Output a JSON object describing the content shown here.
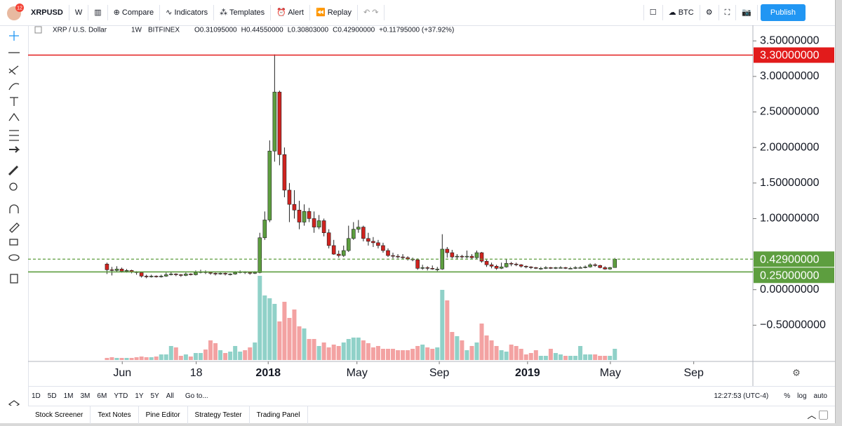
{
  "toolbar": {
    "symbol": "XRPUSD",
    "interval": "W",
    "badge": "12",
    "items": [
      "Compare",
      "Indicators",
      "Templates",
      "Alert",
      "Replay"
    ],
    "currency": "BTC",
    "publish": "Publish"
  },
  "legend": {
    "name": "XRP / U.S. Dollar",
    "interval": "1W",
    "exchange": "BITFINEX",
    "values": [
      "O0.31095000",
      "H0.44550000",
      "L0.30803000",
      "C0.42900000",
      "+0.11795000 (+37.92%)"
    ]
  },
  "chart_data": {
    "type": "candlestick",
    "xlim": [
      -16,
      131
    ],
    "xticks": [
      {
        "value": 3.1,
        "label": "Jun"
      },
      {
        "value": 18.1,
        "label": "18"
      },
      {
        "value": 32.7,
        "label": "2018"
      },
      {
        "value": 50.7,
        "label": "May"
      },
      {
        "value": 67.4,
        "label": "Sep"
      },
      {
        "value": 85.3,
        "label": "2019"
      },
      {
        "value": 102.1,
        "label": "May"
      },
      {
        "value": 119,
        "label": "Sep"
      }
    ],
    "ylim": [
      -1.01,
      3.7
    ],
    "yticks": [
      {
        "value": 3.5,
        "label": "3.50000000"
      },
      {
        "value": 3,
        "label": "3.00000000"
      },
      {
        "value": 2.5,
        "label": "2.50000000"
      },
      {
        "value": 2,
        "label": "2.00000000"
      },
      {
        "value": 1.5,
        "label": "1.50000000"
      },
      {
        "value": 1,
        "label": "1.00000000"
      },
      {
        "value": 0,
        "label": "0.00000000"
      },
      {
        "value": -0.5,
        "label": "−0.50000000"
      }
    ],
    "up_color": "#5d9e3f",
    "down_color": "#d0231f",
    "volume_up_color": "#90d1c8",
    "volume_down_color": "#f3a2a2",
    "hlines": [
      {
        "value": 3.3,
        "label": "3.30000000",
        "color": "#e21b1b",
        "style": "solid"
      },
      {
        "value": 0.25,
        "label": "0.25000000",
        "color": "#5d9e3f",
        "style": "solid"
      },
      {
        "value": 0.429,
        "label": "0.42900000",
        "color": "#5d9e3f",
        "style": "dashed"
      }
    ],
    "candles": [
      [
        0.36,
        0.38,
        0.22,
        0.28
      ],
      [
        0.28,
        0.32,
        0.2,
        0.27
      ],
      [
        0.27,
        0.33,
        0.25,
        0.29
      ],
      [
        0.29,
        0.31,
        0.24,
        0.26
      ],
      [
        0.26,
        0.29,
        0.24,
        0.27
      ],
      [
        0.27,
        0.28,
        0.23,
        0.25
      ],
      [
        0.25,
        0.26,
        0.21,
        0.24
      ],
      [
        0.24,
        0.25,
        0.17,
        0.19
      ],
      [
        0.19,
        0.21,
        0.16,
        0.18
      ],
      [
        0.18,
        0.21,
        0.17,
        0.19
      ],
      [
        0.19,
        0.2,
        0.17,
        0.18
      ],
      [
        0.18,
        0.21,
        0.17,
        0.19
      ],
      [
        0.19,
        0.24,
        0.18,
        0.21
      ],
      [
        0.21,
        0.25,
        0.2,
        0.22
      ],
      [
        0.22,
        0.23,
        0.19,
        0.21
      ],
      [
        0.21,
        0.22,
        0.18,
        0.2
      ],
      [
        0.2,
        0.24,
        0.19,
        0.22
      ],
      [
        0.22,
        0.23,
        0.2,
        0.21
      ],
      [
        0.21,
        0.27,
        0.2,
        0.24
      ],
      [
        0.24,
        0.28,
        0.23,
        0.25
      ],
      [
        0.25,
        0.27,
        0.22,
        0.24
      ],
      [
        0.24,
        0.25,
        0.21,
        0.23
      ],
      [
        0.23,
        0.24,
        0.2,
        0.22
      ],
      [
        0.22,
        0.24,
        0.21,
        0.23
      ],
      [
        0.23,
        0.24,
        0.2,
        0.22
      ],
      [
        0.22,
        0.23,
        0.2,
        0.22
      ],
      [
        0.22,
        0.26,
        0.21,
        0.24
      ],
      [
        0.24,
        0.27,
        0.23,
        0.25
      ],
      [
        0.25,
        0.26,
        0.22,
        0.24
      ],
      [
        0.24,
        0.25,
        0.21,
        0.23
      ],
      [
        0.23,
        0.26,
        0.22,
        0.24
      ],
      [
        0.24,
        0.8,
        0.23,
        0.73
      ],
      [
        0.73,
        1.1,
        0.7,
        0.98
      ],
      [
        0.98,
        2.1,
        0.95,
        1.95
      ],
      [
        1.95,
        3.31,
        1.8,
        2.78
      ],
      [
        2.78,
        2.8,
        1.75,
        1.9
      ],
      [
        1.9,
        2.0,
        1.3,
        1.4
      ],
      [
        1.4,
        1.5,
        0.95,
        1.2
      ],
      [
        1.2,
        1.4,
        1.0,
        1.12
      ],
      [
        1.12,
        1.25,
        0.85,
        0.95
      ],
      [
        0.95,
        1.2,
        0.9,
        1.1
      ],
      [
        1.1,
        1.15,
        0.95,
        1.0
      ],
      [
        1.0,
        1.1,
        0.8,
        0.88
      ],
      [
        0.88,
        1.05,
        0.85,
        0.97
      ],
      [
        0.97,
        1.0,
        0.75,
        0.8
      ],
      [
        0.8,
        0.85,
        0.58,
        0.62
      ],
      [
        0.62,
        0.7,
        0.49,
        0.5
      ],
      [
        0.5,
        0.55,
        0.45,
        0.48
      ],
      [
        0.48,
        0.62,
        0.46,
        0.55
      ],
      [
        0.55,
        0.9,
        0.53,
        0.72
      ],
      [
        0.72,
        0.95,
        0.7,
        0.85
      ],
      [
        0.85,
        0.98,
        0.8,
        0.88
      ],
      [
        0.88,
        0.9,
        0.68,
        0.72
      ],
      [
        0.72,
        0.8,
        0.62,
        0.68
      ],
      [
        0.68,
        0.74,
        0.6,
        0.66
      ],
      [
        0.66,
        0.7,
        0.58,
        0.62
      ],
      [
        0.62,
        0.66,
        0.52,
        0.55
      ],
      [
        0.55,
        0.58,
        0.46,
        0.48
      ],
      [
        0.48,
        0.52,
        0.44,
        0.47
      ],
      [
        0.47,
        0.5,
        0.44,
        0.46
      ],
      [
        0.46,
        0.5,
        0.43,
        0.45
      ],
      [
        0.45,
        0.47,
        0.41,
        0.43
      ],
      [
        0.43,
        0.45,
        0.4,
        0.42
      ],
      [
        0.42,
        0.44,
        0.28,
        0.3
      ],
      [
        0.3,
        0.35,
        0.28,
        0.31
      ],
      [
        0.31,
        0.33,
        0.27,
        0.3
      ],
      [
        0.3,
        0.34,
        0.28,
        0.29
      ],
      [
        0.29,
        0.32,
        0.26,
        0.29
      ],
      [
        0.29,
        0.78,
        0.28,
        0.57
      ],
      [
        0.57,
        0.6,
        0.45,
        0.52
      ],
      [
        0.52,
        0.56,
        0.44,
        0.46
      ],
      [
        0.46,
        0.5,
        0.43,
        0.47
      ],
      [
        0.47,
        0.49,
        0.44,
        0.46
      ],
      [
        0.46,
        0.55,
        0.44,
        0.47
      ],
      [
        0.47,
        0.5,
        0.43,
        0.45
      ],
      [
        0.45,
        0.55,
        0.43,
        0.52
      ],
      [
        0.52,
        0.53,
        0.38,
        0.4
      ],
      [
        0.4,
        0.42,
        0.32,
        0.35
      ],
      [
        0.35,
        0.38,
        0.3,
        0.33
      ],
      [
        0.33,
        0.35,
        0.28,
        0.3
      ],
      [
        0.3,
        0.38,
        0.29,
        0.32
      ],
      [
        0.32,
        0.43,
        0.31,
        0.37
      ],
      [
        0.37,
        0.39,
        0.33,
        0.36
      ],
      [
        0.36,
        0.38,
        0.33,
        0.35
      ],
      [
        0.35,
        0.36,
        0.31,
        0.33
      ],
      [
        0.33,
        0.34,
        0.3,
        0.32
      ],
      [
        0.32,
        0.33,
        0.29,
        0.31
      ],
      [
        0.31,
        0.32,
        0.29,
        0.3
      ],
      [
        0.3,
        0.32,
        0.28,
        0.3
      ],
      [
        0.3,
        0.33,
        0.29,
        0.31
      ],
      [
        0.31,
        0.32,
        0.29,
        0.3
      ],
      [
        0.3,
        0.32,
        0.29,
        0.31
      ],
      [
        0.31,
        0.33,
        0.3,
        0.31
      ],
      [
        0.31,
        0.32,
        0.29,
        0.3
      ],
      [
        0.3,
        0.32,
        0.29,
        0.3
      ],
      [
        0.3,
        0.33,
        0.29,
        0.31
      ],
      [
        0.31,
        0.33,
        0.3,
        0.31
      ],
      [
        0.31,
        0.34,
        0.3,
        0.32
      ],
      [
        0.32,
        0.37,
        0.31,
        0.35
      ],
      [
        0.35,
        0.37,
        0.32,
        0.34
      ],
      [
        0.34,
        0.35,
        0.3,
        0.31
      ],
      [
        0.31,
        0.33,
        0.28,
        0.29
      ],
      [
        0.29,
        0.32,
        0.28,
        0.31
      ],
      [
        0.31095,
        0.4455,
        0.30803,
        0.429
      ]
    ],
    "volume": [
      3,
      4,
      3,
      3,
      3,
      3,
      4,
      5,
      4,
      4,
      5,
      8,
      8,
      20,
      18,
      6,
      8,
      5,
      10,
      10,
      15,
      28,
      24,
      14,
      10,
      12,
      20,
      12,
      14,
      18,
      25,
      120,
      92,
      88,
      80,
      55,
      83,
      60,
      72,
      48,
      45,
      30,
      30,
      20,
      25,
      18,
      22,
      20,
      25,
      30,
      32,
      32,
      28,
      24,
      18,
      20,
      16,
      16,
      16,
      14,
      14,
      14,
      16,
      20,
      22,
      18,
      16,
      18,
      100,
      85,
      40,
      34,
      28,
      14,
      20,
      25,
      52,
      35,
      28,
      20,
      14,
      12,
      22,
      20,
      16,
      8,
      10,
      14,
      6,
      6,
      16,
      10,
      8,
      6,
      6,
      6,
      20,
      8,
      8,
      8,
      6,
      6,
      6,
      16
    ]
  },
  "range_bar": {
    "ranges": [
      "1D",
      "5D",
      "1M",
      "3M",
      "6M",
      "YTD",
      "1Y",
      "5Y",
      "All"
    ],
    "goto": "Go to...",
    "time": "12:27:53 (UTC-4)",
    "options": [
      "%",
      "log",
      "auto"
    ]
  },
  "tabs": [
    "Stock Screener",
    "Text Notes",
    "Pine Editor",
    "Strategy Tester",
    "Trading Panel"
  ]
}
